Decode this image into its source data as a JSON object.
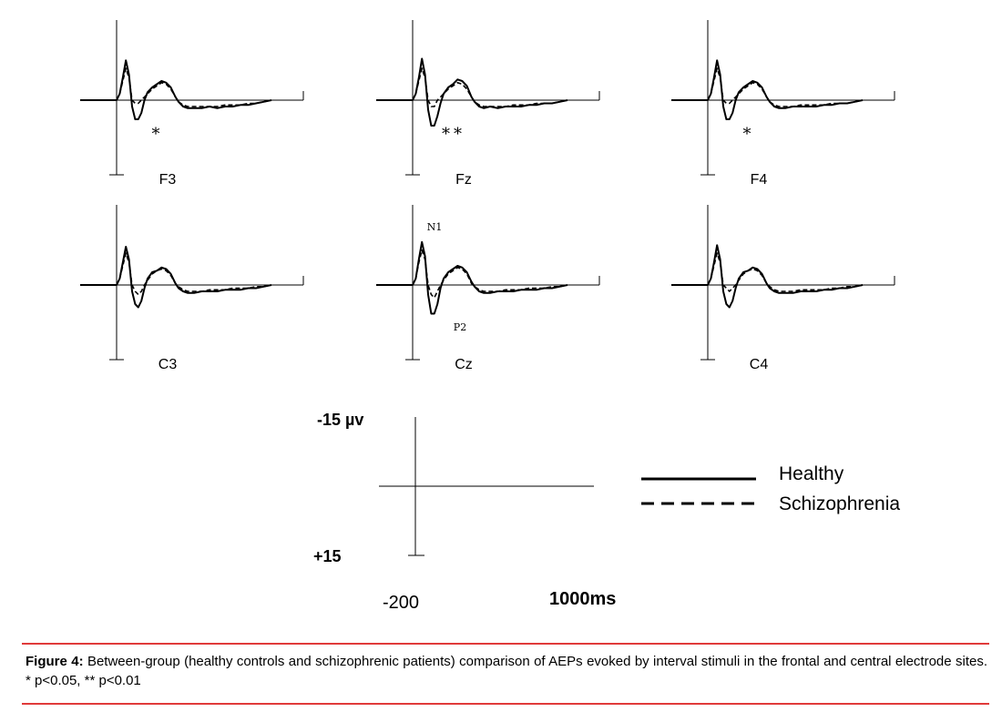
{
  "chart_data": {
    "type": "line",
    "title": "",
    "x_range_ms": [
      -200,
      1000
    ],
    "y_range_uv": [
      -15,
      15
    ],
    "y_axis_inverted": true,
    "series_styles": {
      "Healthy": "solid",
      "Schizophrenia": "dashed"
    },
    "x": [
      -200,
      -150,
      -100,
      -50,
      0,
      20,
      40,
      60,
      80,
      100,
      120,
      140,
      160,
      180,
      200,
      230,
      260,
      290,
      320,
      350,
      380,
      400,
      430,
      460,
      500,
      550,
      600,
      650,
      700,
      750,
      800,
      850,
      900,
      950,
      1000
    ],
    "panels": [
      {
        "label": "F3",
        "significance": "*",
        "series": [
          {
            "name": "Healthy",
            "values": [
              0,
              0,
              0,
              0,
              0,
              -2,
              -7,
              -12.5,
              -8,
              2,
              6,
              6,
              4,
              0,
              -2.5,
              -4,
              -5,
              -6,
              -5.5,
              -4,
              -1,
              0.5,
              2,
              2.5,
              2.5,
              2.5,
              2,
              2.5,
              2,
              2,
              1.5,
              1.5,
              1,
              0.5,
              0
            ]
          },
          {
            "name": "Schizophrenia",
            "values": [
              0,
              0,
              0,
              0,
              0,
              -2,
              -6,
              -10,
              -7,
              0,
              1,
              1,
              0,
              -1,
              -2,
              -3.5,
              -4.5,
              -5.5,
              -5,
              -3.5,
              -1,
              0.5,
              1.5,
              2,
              2,
              2,
              2,
              2,
              1.5,
              1.5,
              1.5,
              1,
              1,
              0.5,
              0
            ]
          }
        ]
      },
      {
        "label": "Fz",
        "significance": "**",
        "series": [
          {
            "name": "Healthy",
            "values": [
              0,
              0,
              0,
              0,
              0,
              -2,
              -7,
              -13,
              -8,
              3,
              8,
              8,
              5,
              1,
              -2,
              -4,
              -5,
              -6.5,
              -6,
              -4.5,
              -1,
              0.5,
              2,
              2.5,
              2,
              2.5,
              2,
              2,
              2,
              1.5,
              1.5,
              1,
              1,
              0.5,
              0
            ]
          },
          {
            "name": "Schizophrenia",
            "values": [
              0,
              0,
              0,
              0,
              0,
              -2,
              -6,
              -10,
              -7,
              0,
              2,
              2,
              0,
              -1,
              -2,
              -3.5,
              -4.5,
              -5.5,
              -5,
              -3.5,
              -1,
              0.5,
              1.5,
              2,
              2,
              2,
              2,
              1.5,
              1.5,
              1.5,
              1,
              1,
              1,
              0.5,
              0
            ]
          }
        ]
      },
      {
        "label": "F4",
        "significance": "*",
        "series": [
          {
            "name": "Healthy",
            "values": [
              0,
              0,
              0,
              0,
              0,
              -2,
              -7,
              -12.5,
              -8,
              2,
              6,
              6,
              4,
              0,
              -2.5,
              -4,
              -5,
              -6,
              -5.5,
              -4,
              -1,
              0.5,
              2,
              2.5,
              2.5,
              2,
              2,
              2,
              2,
              1.5,
              1.5,
              1,
              1,
              0.5,
              0
            ]
          },
          {
            "name": "Schizophrenia",
            "values": [
              0,
              0,
              0,
              0,
              0,
              -2,
              -6,
              -10,
              -7,
              0,
              1,
              1,
              0,
              -1,
              -2,
              -3.5,
              -4.5,
              -5.5,
              -5,
              -3.5,
              -1,
              0.5,
              1.5,
              2,
              2,
              2,
              1.5,
              1.5,
              1.5,
              1.5,
              1,
              1,
              1,
              0.5,
              0
            ]
          }
        ]
      },
      {
        "label": "C3",
        "significance": "",
        "series": [
          {
            "name": "Healthy",
            "values": [
              0,
              0,
              0,
              0,
              0,
              -2,
              -7,
              -12,
              -8,
              2,
              6,
              7,
              5,
              1,
              -2,
              -4,
              -4.5,
              -5.5,
              -5,
              -3.5,
              -0.5,
              1,
              2,
              2.5,
              2.5,
              2,
              2,
              2,
              1.5,
              1.5,
              1.5,
              1,
              1,
              0.5,
              0
            ]
          },
          {
            "name": "Schizophrenia",
            "values": [
              0,
              0,
              0,
              0,
              0,
              -2,
              -6,
              -10,
              -7,
              0,
              2,
              3,
              2,
              0,
              -1.5,
              -3.5,
              -4.5,
              -5,
              -4.5,
              -3,
              -0.5,
              0.5,
              1.5,
              2,
              2,
              2,
              1.5,
              1.5,
              1.5,
              1,
              1,
              1,
              0.5,
              0.5,
              0
            ]
          }
        ]
      },
      {
        "label": "Cz",
        "significance": "",
        "annotations": [
          "N1",
          "P2"
        ],
        "series": [
          {
            "name": "Healthy",
            "values": [
              0,
              0,
              0,
              0,
              0,
              -2,
              -8,
              -13.5,
              -9,
              3,
              9,
              9,
              6,
              1,
              -2,
              -4,
              -5,
              -6,
              -5.5,
              -4,
              -1,
              0.5,
              2,
              2.5,
              2.5,
              2,
              2,
              2,
              1.5,
              1.5,
              1.5,
              1,
              1,
              0.5,
              0
            ]
          },
          {
            "name": "Schizophrenia",
            "values": [
              0,
              0,
              0,
              0,
              0,
              -2,
              -7,
              -11,
              -8,
              0,
              3,
              4,
              2,
              0,
              -1.5,
              -3.5,
              -4.5,
              -5.5,
              -5,
              -3.5,
              -0.5,
              0.5,
              1.5,
              2,
              2,
              2,
              1.5,
              1.5,
              1.5,
              1,
              1,
              1,
              0.5,
              0.5,
              0
            ]
          }
        ]
      },
      {
        "label": "C4",
        "significance": "",
        "series": [
          {
            "name": "Healthy",
            "values": [
              0,
              0,
              0,
              0,
              0,
              -2,
              -7,
              -12.5,
              -8,
              2,
              6,
              7,
              5,
              1,
              -2,
              -4,
              -4.5,
              -5.5,
              -5,
              -3.5,
              -0.5,
              1,
              2,
              2.5,
              2.5,
              2.5,
              2,
              2,
              2,
              1.5,
              1.5,
              1,
              1,
              0.5,
              0
            ]
          },
          {
            "name": "Schizophrenia",
            "values": [
              0,
              0,
              0,
              0,
              0,
              -2,
              -6,
              -10,
              -7,
              0,
              1,
              2,
              1,
              0,
              -1.5,
              -3.5,
              -4.5,
              -5,
              -4.5,
              -3,
              -0.5,
              0.5,
              1.5,
              2,
              2,
              2,
              1.5,
              1.5,
              1.5,
              1.5,
              1,
              1,
              0.5,
              0.5,
              0
            ]
          }
        ]
      }
    ],
    "scale_bar": {
      "top_label": "-15 µv",
      "bottom_label": "+15",
      "x_start_label": "-200",
      "x_end_label": "1000ms"
    },
    "legend": {
      "placement": "bottom-right",
      "entries": [
        {
          "name": "Healthy",
          "style": "solid"
        },
        {
          "name": "Schizophrenia",
          "style": "dashed"
        }
      ]
    }
  },
  "caption": {
    "label": "Figure 4:",
    "text": "Between-group (healthy controls and schizophrenic patients) comparison of AEPs evoked by interval stimuli in the frontal and central electrode sites. * p<0.05, ** p<0.01"
  },
  "colors": {
    "trace": "#000000",
    "caption_rule": "#e03a3a"
  }
}
